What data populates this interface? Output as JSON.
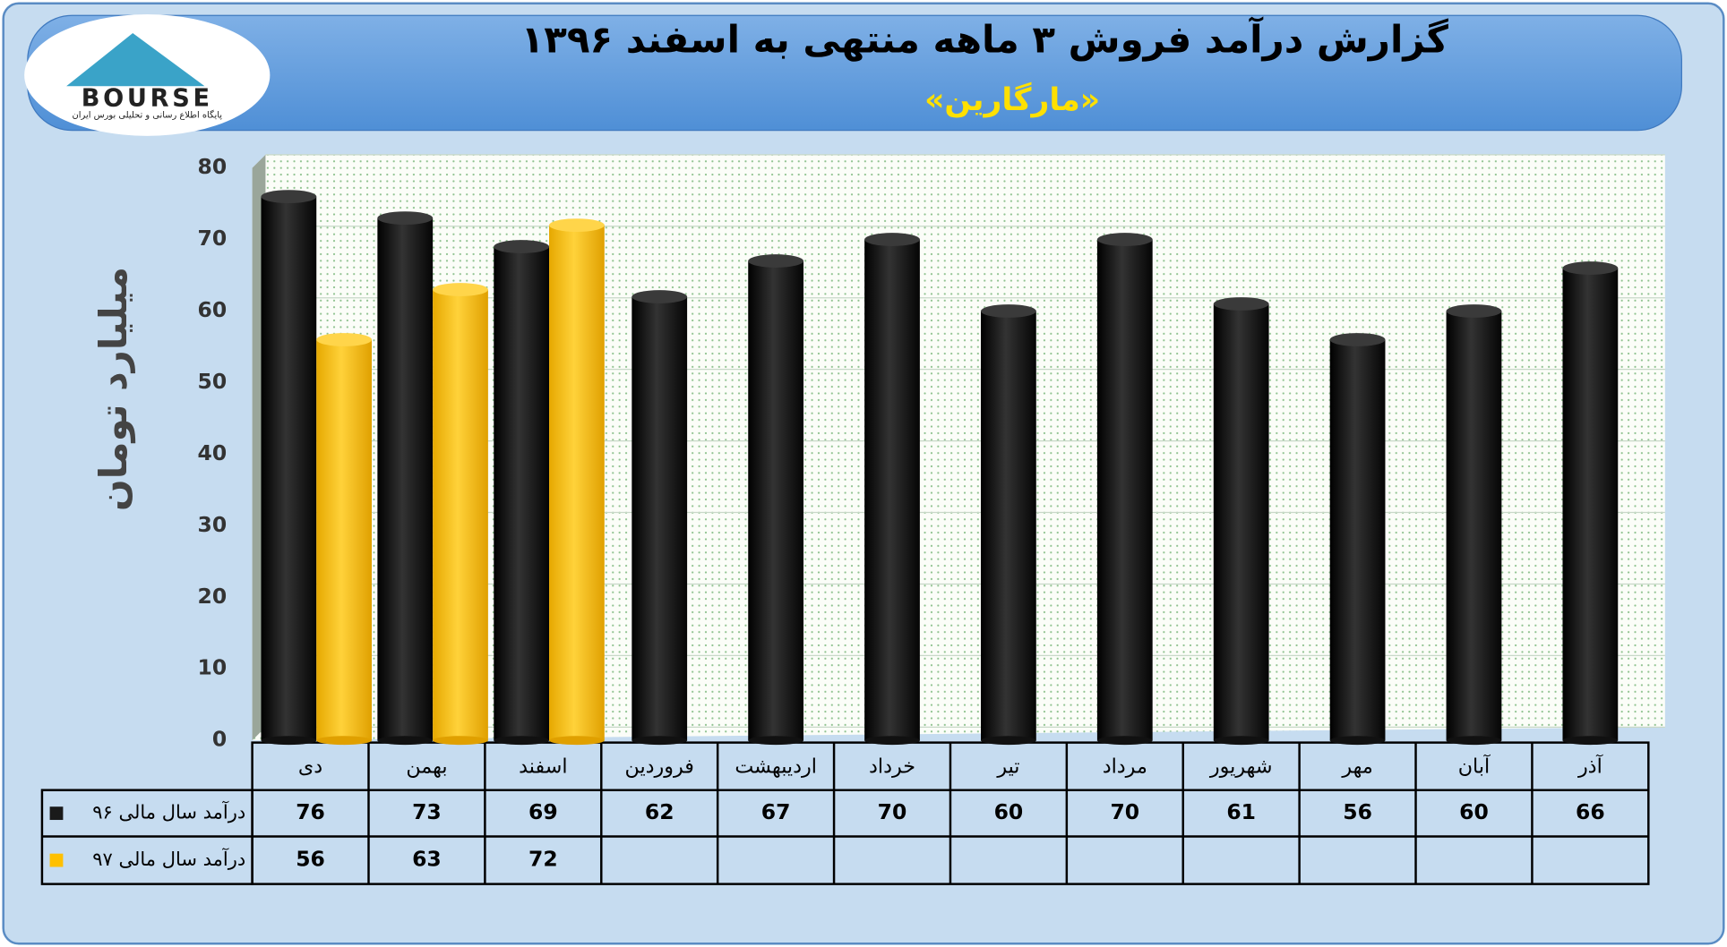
{
  "logo": {
    "text": "BOURSE",
    "caption": "پایگاه اطلاع رسانی و تحلیلی بورس ایران"
  },
  "chart_data": {
    "type": "bar",
    "title": "گزارش درآمد فروش ۳ ماهه منتهی به اسفند ۱۳۹۶",
    "subtitle": "«مارگارین»",
    "y_label": "میلیارد تومان",
    "categories": [
      "دی",
      "بهمن",
      "اسفند",
      "فروردین",
      "اردیبهشت",
      "خرداد",
      "تیر",
      "مرداد",
      "شهریور",
      "مهر",
      "آبان",
      "آذر"
    ],
    "series": [
      {
        "name": "درآمد سال مالی ۹۶",
        "color": "#1a1a1a",
        "values": [
          76,
          73,
          69,
          62,
          67,
          70,
          60,
          70,
          61,
          56,
          60,
          66
        ]
      },
      {
        "name": "درآمد سال مالی ۹۷",
        "color": "#ffc000",
        "values": [
          56,
          63,
          72,
          null,
          null,
          null,
          null,
          null,
          null,
          null,
          null,
          null
        ]
      }
    ],
    "ylim": [
      0,
      80
    ],
    "yticks": [
      0,
      10,
      20,
      30,
      40,
      50,
      60,
      70,
      80
    ],
    "grid": true
  }
}
